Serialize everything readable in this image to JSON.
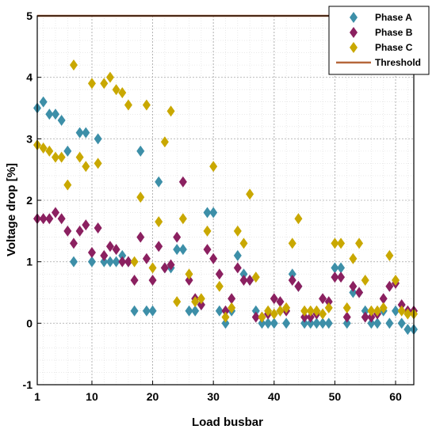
{
  "chart_data": {
    "type": "scatter",
    "xlabel": "Load busbar",
    "ylabel": "Voltage drop [%]",
    "xlim": [
      1,
      63
    ],
    "ylim": [
      -1,
      5
    ],
    "xticks": [
      1,
      10,
      20,
      30,
      40,
      50,
      60
    ],
    "yticks": [
      -1,
      0,
      1,
      2,
      3,
      4,
      5
    ],
    "grid": true,
    "legend_position": "top-right",
    "series": [
      {
        "name": "Phase A",
        "color": "#3d8fa8",
        "marker": "diamond",
        "x": [
          1,
          2,
          3,
          4,
          5,
          6,
          7,
          8,
          9,
          10,
          11,
          12,
          13,
          14,
          15,
          16,
          17,
          18,
          19,
          20,
          21,
          22,
          23,
          24,
          25,
          26,
          27,
          28,
          29,
          30,
          31,
          32,
          33,
          34,
          35,
          36,
          37,
          38,
          39,
          40,
          41,
          42,
          43,
          44,
          45,
          46,
          47,
          48,
          49,
          50,
          51,
          52,
          53,
          54,
          55,
          56,
          57,
          58,
          59,
          60,
          61,
          62,
          63
        ],
        "values": [
          3.5,
          3.6,
          3.4,
          3.4,
          3.3,
          2.8,
          1.0,
          3.1,
          3.1,
          1.0,
          3.0,
          1.0,
          1.0,
          1.0,
          1.1,
          1.0,
          0.2,
          2.8,
          0.2,
          0.2,
          2.3,
          0.9,
          0.9,
          1.2,
          1.2,
          0.2,
          0.2,
          0.3,
          1.8,
          1.8,
          0.2,
          0.0,
          0.2,
          1.1,
          0.8,
          0.7,
          0.2,
          0.0,
          0.0,
          0.0,
          0.2,
          0.0,
          0.8,
          0.6,
          0.0,
          0.0,
          0.0,
          0.0,
          0.0,
          0.9,
          0.9,
          0.0,
          0.5,
          0.5,
          0.2,
          0.0,
          0.0,
          0.2,
          0.0,
          0.2,
          0.0,
          -0.1,
          -0.1
        ]
      },
      {
        "name": "Phase B",
        "color": "#8b2060",
        "marker": "diamond",
        "x": [
          1,
          2,
          3,
          4,
          5,
          6,
          7,
          8,
          9,
          10,
          11,
          12,
          13,
          14,
          15,
          16,
          17,
          18,
          19,
          20,
          21,
          22,
          23,
          24,
          25,
          26,
          27,
          28,
          29,
          30,
          31,
          32,
          33,
          34,
          35,
          36,
          37,
          38,
          39,
          40,
          41,
          42,
          43,
          44,
          45,
          46,
          47,
          48,
          49,
          50,
          51,
          52,
          53,
          54,
          55,
          56,
          57,
          58,
          59,
          60,
          61,
          62,
          63
        ],
        "values": [
          1.7,
          1.7,
          1.7,
          1.8,
          1.7,
          1.5,
          1.3,
          1.5,
          1.6,
          1.15,
          1.55,
          1.1,
          1.25,
          1.2,
          1.0,
          1.0,
          0.7,
          1.4,
          1.05,
          0.7,
          1.25,
          0.9,
          0.95,
          1.4,
          2.3,
          0.7,
          0.4,
          0.3,
          1.2,
          1.05,
          0.8,
          0.2,
          0.4,
          0.9,
          0.7,
          0.7,
          0.1,
          0.1,
          0.15,
          0.4,
          0.35,
          0.2,
          0.7,
          0.6,
          0.1,
          0.1,
          0.15,
          0.4,
          0.35,
          0.75,
          0.75,
          0.1,
          0.6,
          0.5,
          0.1,
          0.1,
          0.15,
          0.4,
          0.6,
          0.65,
          0.3,
          0.2,
          0.2
        ]
      },
      {
        "name": "Phase C",
        "color": "#c9a800",
        "marker": "diamond",
        "x": [
          1,
          2,
          3,
          4,
          5,
          6,
          7,
          8,
          9,
          10,
          11,
          12,
          13,
          14,
          15,
          16,
          17,
          18,
          19,
          20,
          21,
          22,
          23,
          24,
          25,
          26,
          27,
          28,
          29,
          30,
          31,
          32,
          33,
          34,
          35,
          36,
          37,
          38,
          39,
          40,
          41,
          42,
          43,
          44,
          45,
          46,
          47,
          48,
          49,
          50,
          51,
          52,
          53,
          54,
          55,
          56,
          57,
          58,
          59,
          60,
          61,
          62,
          63
        ],
        "values": [
          2.9,
          2.85,
          2.8,
          2.7,
          2.7,
          2.25,
          4.2,
          2.7,
          2.55,
          3.9,
          2.6,
          3.9,
          4.0,
          3.8,
          3.75,
          3.55,
          1.0,
          2.05,
          3.55,
          0.9,
          1.65,
          2.95,
          3.45,
          0.35,
          1.7,
          0.8,
          0.35,
          0.4,
          1.5,
          2.55,
          0.6,
          0.1,
          0.25,
          1.5,
          1.3,
          2.1,
          0.75,
          0.1,
          0.2,
          0.15,
          0.2,
          0.25,
          1.3,
          1.7,
          0.2,
          0.2,
          0.2,
          0.15,
          0.25,
          1.3,
          1.3,
          0.25,
          1.05,
          1.3,
          0.7,
          0.2,
          0.2,
          0.25,
          1.1,
          0.7,
          0.2,
          0.15,
          0.15
        ]
      }
    ],
    "threshold": {
      "name": "Threshold",
      "value": 5,
      "color": "#b5673a"
    }
  }
}
